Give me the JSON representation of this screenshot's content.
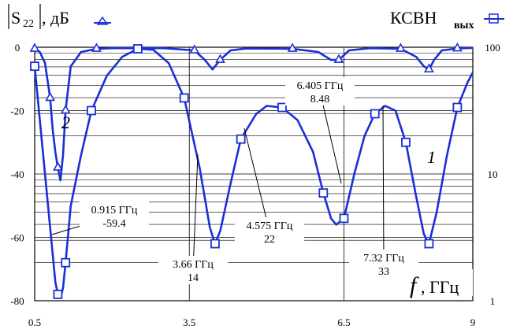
{
  "chart_data": {
    "type": "line",
    "y_left_label_main": "S",
    "y_left_label_sub": "22",
    "y_left_label_unit": ", дБ",
    "y_right_label_main": "КСВН",
    "y_right_label_sub": "вых",
    "x_label_var": "f",
    "x_label_unit": ", ГГц",
    "x_ticks": [
      "0.5",
      "3.5",
      "6.5",
      "9"
    ],
    "x_tick_values": [
      0.5,
      3.5,
      6.5,
      9
    ],
    "y_left_ticks": [
      "0",
      "-20",
      "-40",
      "-60",
      "-80"
    ],
    "y_left_tick_values": [
      0,
      -20,
      -40,
      -60,
      -80
    ],
    "y_right_ticks": [
      "100",
      "10",
      "1"
    ],
    "y_right_tick_values": [
      100,
      10,
      1
    ],
    "xlim": [
      0.5,
      9.0
    ],
    "ylim_left": [
      -80,
      0
    ],
    "ylim_right": [
      1,
      100
    ],
    "y_right_scale": "log",
    "grid": true,
    "color": "#1a2fd6",
    "series": [
      {
        "curve_label": "1",
        "marker": "square",
        "axis": "left",
        "x": [
          0.5,
          0.7,
          0.9,
          0.95,
          1.0,
          1.05,
          1.1,
          1.2,
          1.4,
          1.6,
          1.9,
          2.2,
          2.5,
          2.8,
          3.1,
          3.4,
          3.7,
          3.9,
          4.0,
          4.1,
          4.3,
          4.5,
          4.8,
          5.0,
          5.3,
          5.6,
          5.9,
          6.1,
          6.25,
          6.35,
          6.5,
          6.7,
          6.9,
          7.1,
          7.3,
          7.5,
          7.7,
          7.9,
          8.05,
          8.15,
          8.3,
          8.5,
          8.7,
          8.9,
          9.0
        ],
        "y": [
          -6,
          -40,
          -74,
          -78,
          -79,
          -76,
          -68,
          -50,
          -34,
          -20,
          -9,
          -3,
          -0.5,
          -0.8,
          -5,
          -16,
          -38,
          -57,
          -62,
          -58,
          -43,
          -29,
          -21,
          -18.5,
          -19,
          -23,
          -33,
          -46,
          -54,
          -56,
          -54,
          -40,
          -28,
          -21,
          -18.5,
          -20,
          -30,
          -47,
          -59,
          -62,
          -52,
          -34,
          -19,
          -11,
          -8
        ]
      },
      {
        "curve_label": "2",
        "marker": "triangle",
        "axis": "left",
        "x": [
          0.5,
          0.6,
          0.7,
          0.8,
          0.85,
          0.9,
          0.95,
          1.0,
          1.05,
          1.1,
          1.2,
          1.4,
          1.7,
          2.0,
          3.0,
          3.6,
          3.8,
          3.95,
          4.1,
          4.3,
          4.6,
          5.5,
          6.0,
          6.25,
          6.4,
          6.6,
          7.0,
          7.6,
          7.9,
          8.05,
          8.15,
          8.25,
          8.4,
          8.7,
          9.0
        ],
        "y": [
          -0.5,
          -1.5,
          -5,
          -16,
          -26,
          -33,
          -38,
          -42,
          -34,
          -20,
          -6,
          -1.5,
          -0.5,
          -0.3,
          -0.3,
          -1,
          -4,
          -7,
          -4,
          -1,
          -0.4,
          -0.5,
          -1.5,
          -4,
          -4,
          -1,
          -0.3,
          -0.5,
          -3,
          -6,
          -7,
          -4,
          -1,
          -0.4,
          -0.2
        ]
      }
    ],
    "annotations": [
      {
        "freq": "0.915 ГГц",
        "value": "-59.4",
        "x": 0.915,
        "y": -59.4
      },
      {
        "freq": "3.66 ГГц",
        "value": "14",
        "x": 3.66,
        "y": 14
      },
      {
        "freq": "4.575 ГГц",
        "value": "22",
        "x": 4.575,
        "y": 22
      },
      {
        "freq": "6.405 ГГц",
        "value": "8.48",
        "x": 6.405,
        "y": 8.48
      },
      {
        "freq": "7.32 ГГц",
        "value": "33",
        "x": 7.32,
        "y": 33
      }
    ]
  }
}
